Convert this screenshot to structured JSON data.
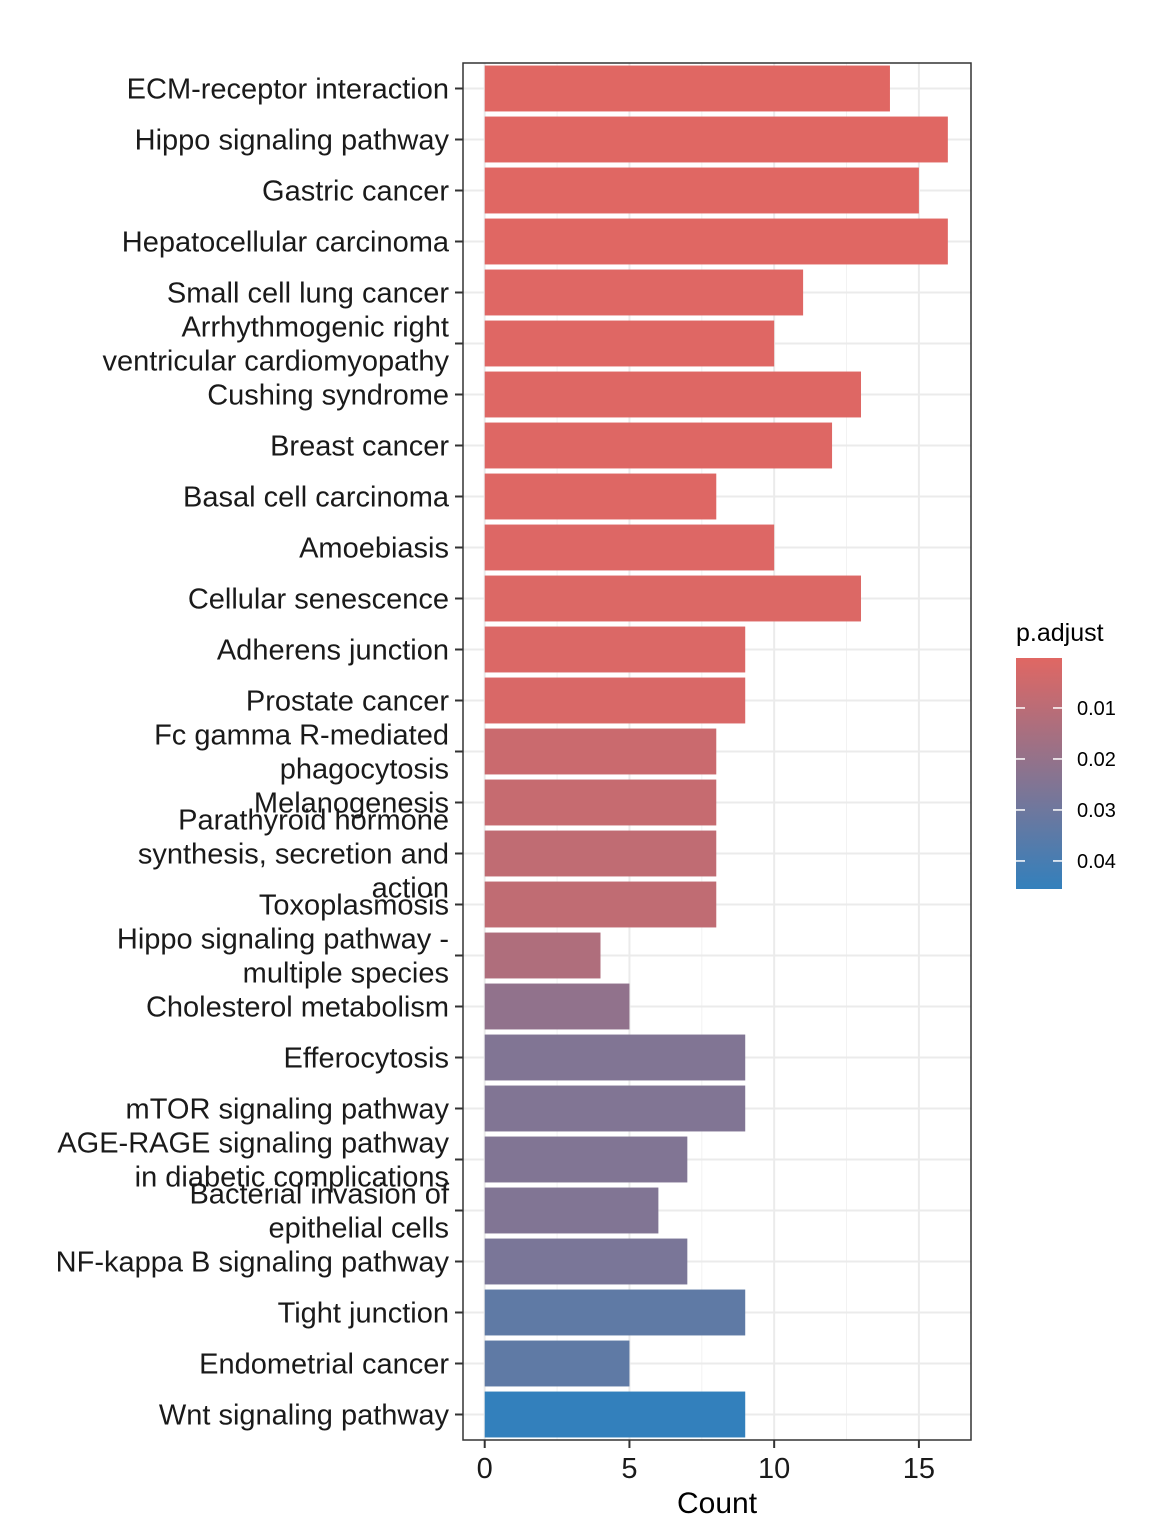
{
  "chart_data": {
    "type": "bar",
    "orientation": "horizontal",
    "xlabel": "Count",
    "ylabel": "",
    "xlim": [
      -0.75,
      16.8
    ],
    "xticks": [
      0,
      5,
      10,
      15
    ],
    "grid": true,
    "legend": {
      "title": "p.adjust",
      "position": "right",
      "ticks": [
        {
          "value": 0.01,
          "label": "0.01"
        },
        {
          "value": 0.02,
          "label": "0.02"
        },
        {
          "value": 0.03,
          "label": "0.03"
        },
        {
          "value": 0.04,
          "label": "0.04"
        }
      ],
      "range": [
        0.0002,
        0.0455
      ],
      "low_color": "#e06763",
      "high_color": "#3380bc"
    },
    "bars": [
      {
        "label": [
          "ECM-receptor interaction"
        ],
        "count": 14,
        "p_adjust": 0.0003
      },
      {
        "label": [
          "Hippo signaling pathway"
        ],
        "count": 16,
        "p_adjust": 0.0003
      },
      {
        "label": [
          "Gastric cancer"
        ],
        "count": 15,
        "p_adjust": 0.0003
      },
      {
        "label": [
          "Hepatocellular carcinoma"
        ],
        "count": 16,
        "p_adjust": 0.0003
      },
      {
        "label": [
          "Small cell lung cancer"
        ],
        "count": 11,
        "p_adjust": 0.0005
      },
      {
        "label": [
          "Arrhythmogenic right",
          "ventricular cardiomyopathy"
        ],
        "count": 10,
        "p_adjust": 0.0005
      },
      {
        "label": [
          "Cushing syndrome"
        ],
        "count": 13,
        "p_adjust": 0.0006
      },
      {
        "label": [
          "Breast cancer"
        ],
        "count": 12,
        "p_adjust": 0.0007
      },
      {
        "label": [
          "Basal cell carcinoma"
        ],
        "count": 8,
        "p_adjust": 0.0008
      },
      {
        "label": [
          "Amoebiasis"
        ],
        "count": 10,
        "p_adjust": 0.001
      },
      {
        "label": [
          "Cellular senescence"
        ],
        "count": 13,
        "p_adjust": 0.0012
      },
      {
        "label": [
          "Adherens junction"
        ],
        "count": 9,
        "p_adjust": 0.0015
      },
      {
        "label": [
          "Prostate cancer"
        ],
        "count": 9,
        "p_adjust": 0.002
      },
      {
        "label": [
          "Fc gamma R-mediated",
          "phagocytosis"
        ],
        "count": 8,
        "p_adjust": 0.006
      },
      {
        "label": [
          "Melanogenesis"
        ],
        "count": 8,
        "p_adjust": 0.007
      },
      {
        "label": [
          "Parathyroid hormone",
          "synthesis, secretion and",
          "action"
        ],
        "count": 8,
        "p_adjust": 0.0085
      },
      {
        "label": [
          "Toxoplasmosis"
        ],
        "count": 8,
        "p_adjust": 0.0085
      },
      {
        "label": [
          "Hippo signaling pathway -",
          "multiple species"
        ],
        "count": 4,
        "p_adjust": 0.013
      },
      {
        "label": [
          "Cholesterol metabolism"
        ],
        "count": 5,
        "p_adjust": 0.021
      },
      {
        "label": [
          "Efferocytosis"
        ],
        "count": 9,
        "p_adjust": 0.025
      },
      {
        "label": [
          "mTOR signaling pathway"
        ],
        "count": 9,
        "p_adjust": 0.025
      },
      {
        "label": [
          "AGE-RAGE signaling pathway",
          "in diabetic complications"
        ],
        "count": 7,
        "p_adjust": 0.025
      },
      {
        "label": [
          "Bacterial invasion of",
          "epithelial cells"
        ],
        "count": 6,
        "p_adjust": 0.025
      },
      {
        "label": [
          "NF-kappa B signaling pathway"
        ],
        "count": 7,
        "p_adjust": 0.027
      },
      {
        "label": [
          "Tight junction"
        ],
        "count": 9,
        "p_adjust": 0.034
      },
      {
        "label": [
          "Endometrial cancer"
        ],
        "count": 5,
        "p_adjust": 0.034
      },
      {
        "label": [
          "Wnt signaling pathway"
        ],
        "count": 9,
        "p_adjust": 0.0455
      }
    ]
  }
}
